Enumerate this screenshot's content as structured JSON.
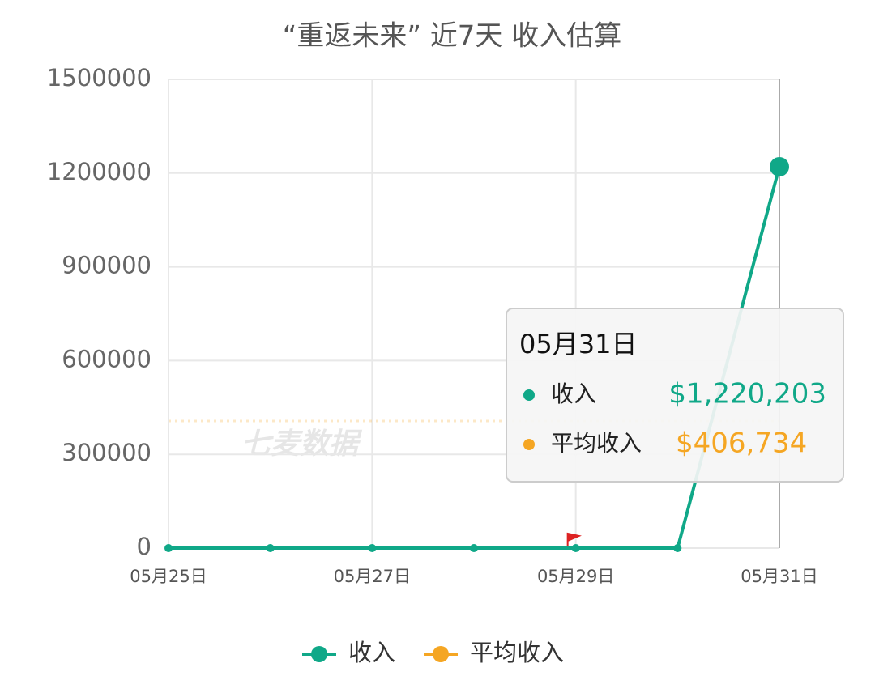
{
  "chart_data": {
    "type": "line",
    "title": "“重返未来” 近7天 收入估算",
    "watermark": "七麦数据",
    "categories": [
      "05月25日",
      null,
      "05月27日",
      null,
      "05月29日",
      null,
      "05月31日"
    ],
    "series": [
      {
        "name": "收入",
        "color": "#10a888",
        "values": [
          0,
          0,
          0,
          0,
          0,
          0,
          1220203
        ],
        "value_labels": [
          null,
          null,
          null,
          null,
          null,
          null,
          "$1,220,203"
        ]
      },
      {
        "name": "平均收入",
        "color": "#f5a623",
        "value": 406734,
        "value_label": "$406,734"
      }
    ],
    "ylim": [
      0,
      1500000
    ],
    "yticks": [
      0,
      300000,
      600000,
      900000,
      1200000,
      1500000
    ],
    "grid": true,
    "tooltip_category": "05月31日"
  }
}
